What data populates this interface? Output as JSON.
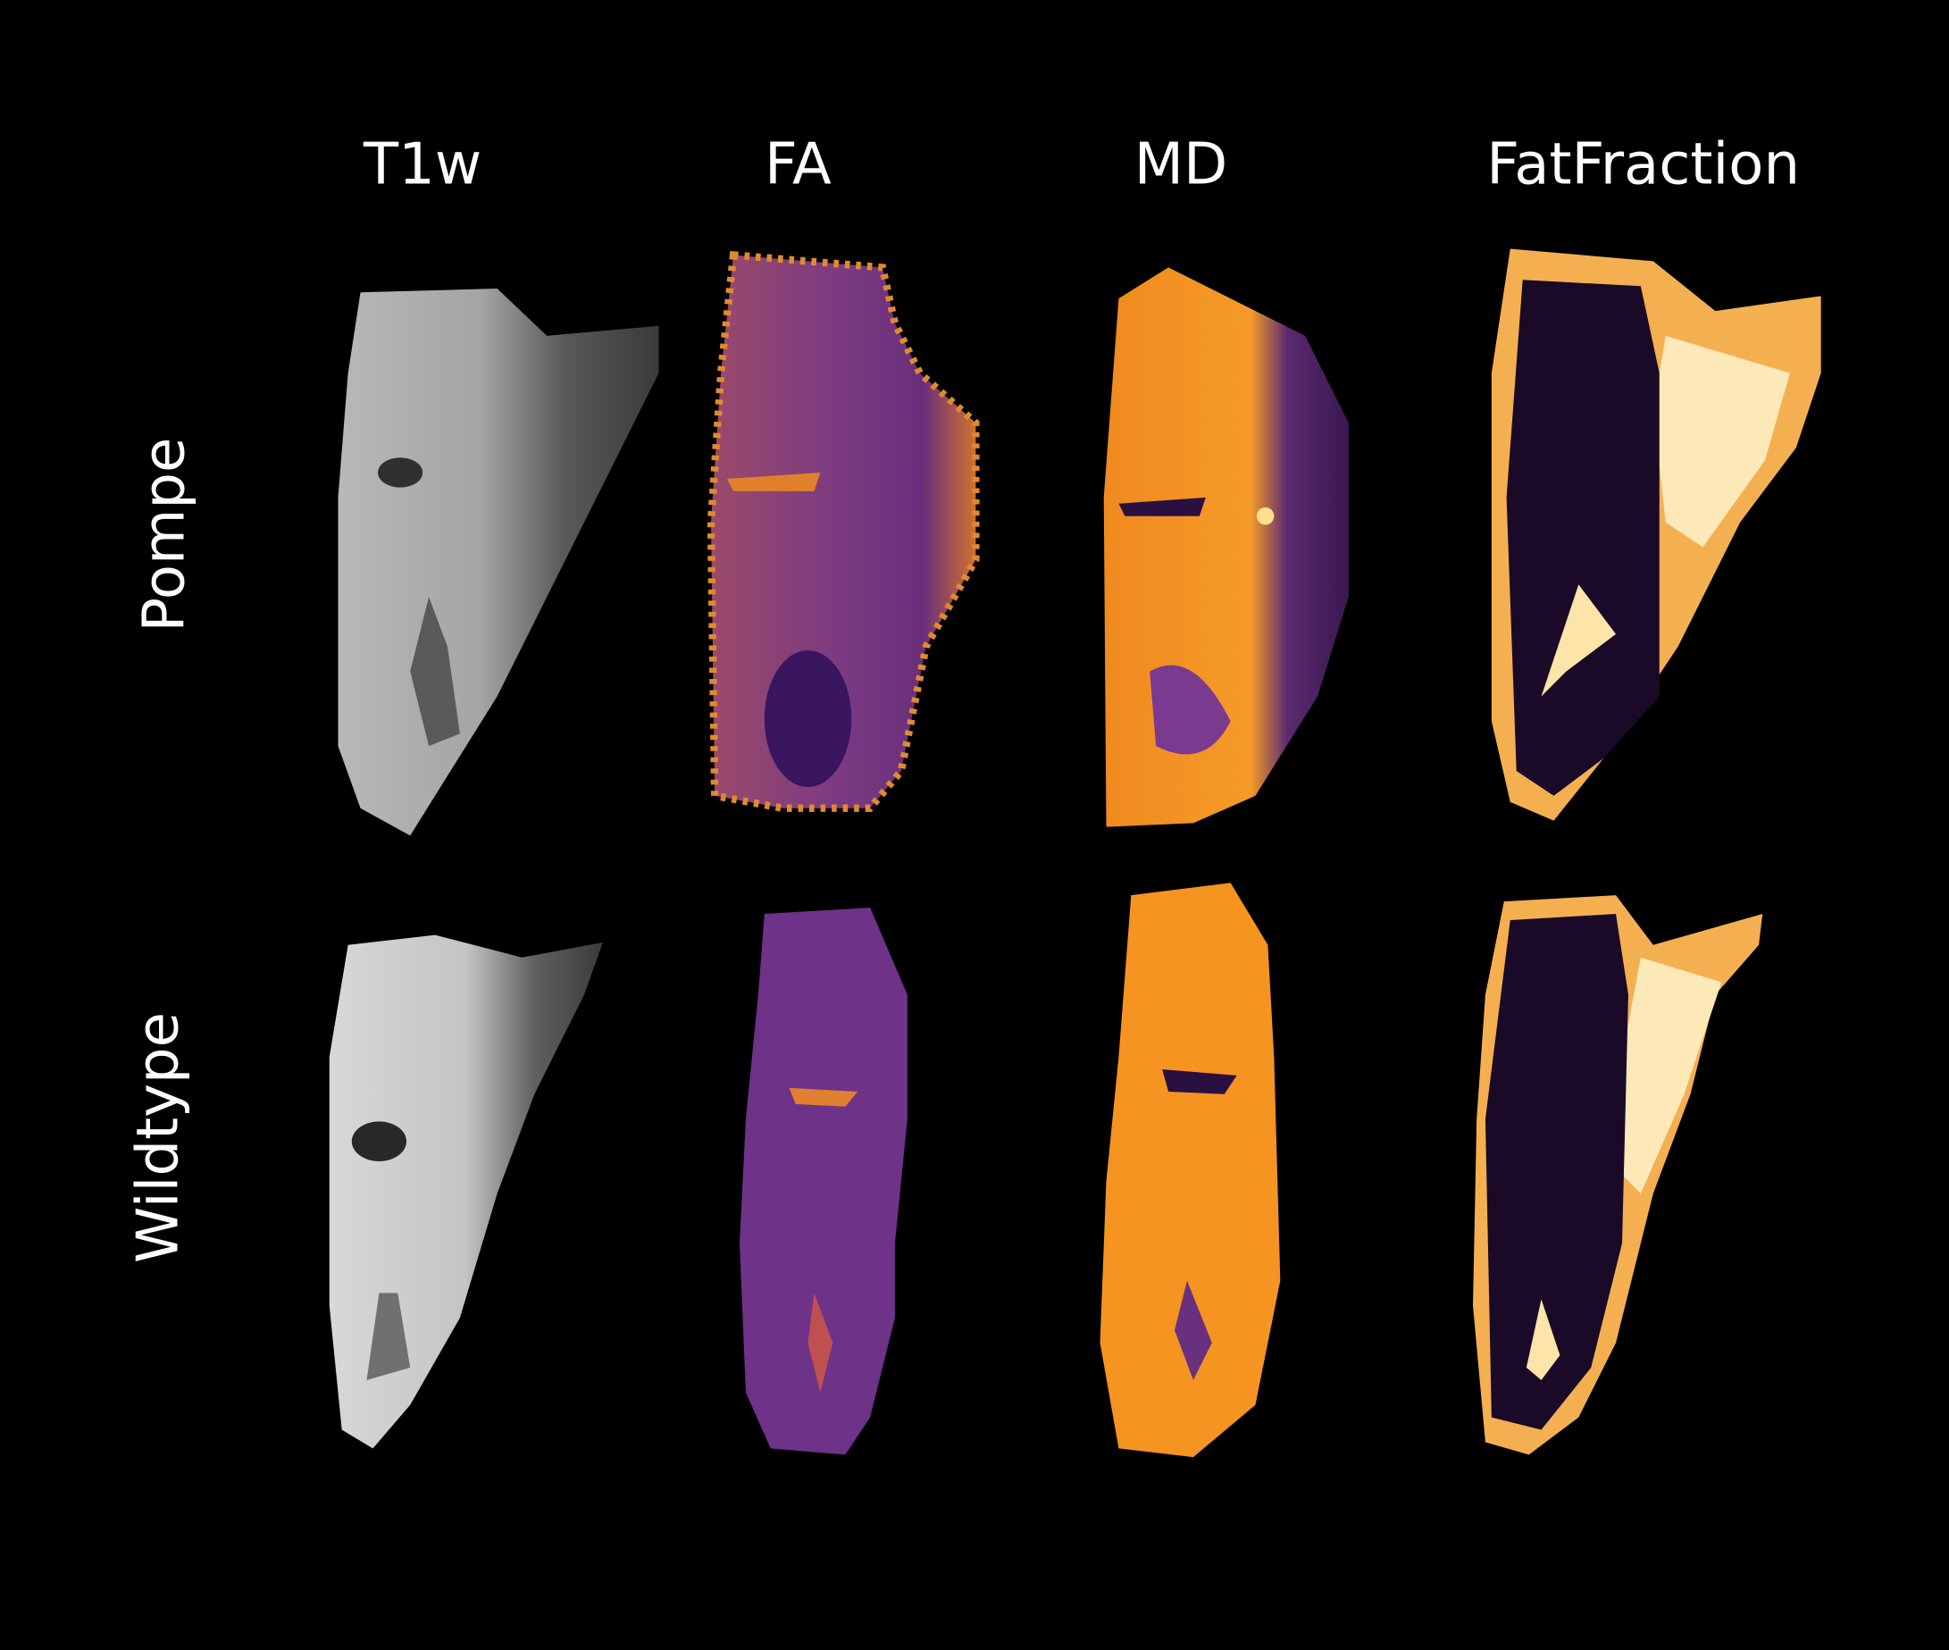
{
  "column_headers": [
    "T1w",
    "FA",
    "MD",
    "FatFraction"
  ],
  "row_labels": [
    "Pompe",
    "Wildtype"
  ]
}
